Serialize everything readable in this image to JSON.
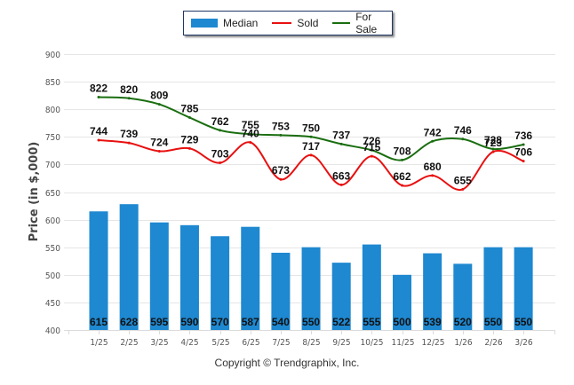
{
  "chart_data": {
    "type": "bar",
    "title": "",
    "xlabel": "",
    "ylabel": "Price (in $,000)",
    "ylim": [
      400,
      900
    ],
    "yticks": [
      400,
      450,
      500,
      550,
      600,
      650,
      700,
      750,
      800,
      850,
      900
    ],
    "grid": true,
    "legend_position": "top-center",
    "categories": [
      "1/25",
      "2/25",
      "3/25",
      "4/25",
      "5/25",
      "6/25",
      "7/25",
      "8/25",
      "9/25",
      "10/25",
      "11/25",
      "12/25",
      "1/26",
      "2/26",
      "3/26"
    ],
    "series": [
      {
        "name": "Median",
        "type": "bar",
        "color": "#1e88d0",
        "values": [
          615,
          628,
          595,
          590,
          570,
          587,
          540,
          550,
          522,
          555,
          500,
          539,
          520,
          550,
          550
        ]
      },
      {
        "name": "Sold",
        "type": "line",
        "color": "#e81010",
        "values": [
          744,
          739,
          724,
          729,
          703,
          740,
          673,
          717,
          663,
          715,
          662,
          680,
          655,
          723,
          706
        ]
      },
      {
        "name": "For Sale",
        "type": "line",
        "color": "#1a6e10",
        "values": [
          822,
          820,
          809,
          785,
          762,
          755,
          753,
          750,
          737,
          726,
          708,
          742,
          746,
          728,
          736
        ]
      }
    ]
  },
  "legend": {
    "items": [
      {
        "label": "Median"
      },
      {
        "label": "Sold"
      },
      {
        "label": "For Sale"
      }
    ]
  },
  "footer": {
    "copyright": "Copyright © Trendgraphix, Inc."
  }
}
